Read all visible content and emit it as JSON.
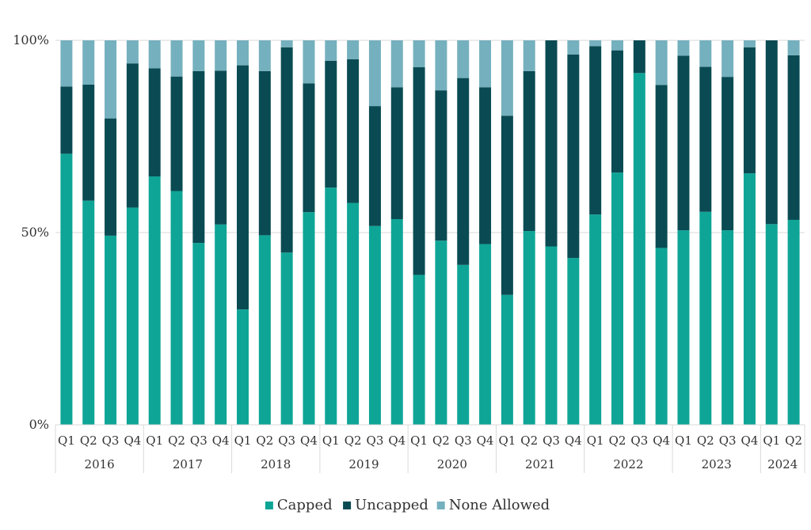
{
  "chart_data": {
    "type": "bar",
    "stacked": true,
    "percent_stacked": true,
    "title": "",
    "xlabel": "",
    "ylabel": "",
    "ylim": [
      0,
      100
    ],
    "yticks": [
      "0%",
      "50%",
      "100%"
    ],
    "grid": "horizontal",
    "legend": "bottom",
    "categories": [
      "Q1",
      "Q2",
      "Q3",
      "Q4",
      "Q1",
      "Q2",
      "Q3",
      "Q4",
      "Q1",
      "Q2",
      "Q3",
      "Q4",
      "Q1",
      "Q2",
      "Q3",
      "Q4",
      "Q1",
      "Q2",
      "Q3",
      "Q4",
      "Q1",
      "Q2",
      "Q3",
      "Q4",
      "Q1",
      "Q2",
      "Q3",
      "Q4",
      "Q1",
      "Q2",
      "Q3",
      "Q4",
      "Q1",
      "Q2"
    ],
    "groups": [
      {
        "label": "2016",
        "count": 4
      },
      {
        "label": "2017",
        "count": 4
      },
      {
        "label": "2018",
        "count": 4
      },
      {
        "label": "2019",
        "count": 4
      },
      {
        "label": "2020",
        "count": 4
      },
      {
        "label": "2021",
        "count": 4
      },
      {
        "label": "2022",
        "count": 4
      },
      {
        "label": "2023",
        "count": 4
      },
      {
        "label": "2024",
        "count": 2
      }
    ],
    "series": [
      {
        "name": "Capped",
        "color": "#0ea597",
        "values": [
          70.5,
          58.3,
          49.2,
          56.5,
          64.6,
          60.8,
          47.3,
          52.1,
          30.0,
          49.3,
          44.8,
          55.3,
          61.7,
          57.7,
          51.7,
          53.5,
          39.0,
          47.9,
          41.6,
          47.0,
          33.8,
          50.4,
          46.4,
          43.4,
          54.7,
          65.6,
          91.5,
          46.0,
          50.6,
          55.4,
          50.6,
          65.4,
          52.2,
          53.3
        ]
      },
      {
        "name": "Uncapped",
        "color": "#0a4b53",
        "values": [
          17.5,
          30.2,
          30.5,
          37.5,
          28.1,
          29.8,
          44.7,
          40.0,
          63.5,
          42.7,
          53.4,
          33.5,
          33.0,
          37.4,
          31.2,
          34.3,
          54.0,
          39.1,
          48.6,
          40.8,
          46.6,
          41.6,
          53.6,
          52.9,
          43.8,
          31.8,
          8.5,
          42.4,
          45.4,
          37.7,
          39.9,
          32.8,
          47.8,
          42.8
        ]
      },
      {
        "name": "None Allowed",
        "color": "#75b0be",
        "values": [
          12.0,
          11.5,
          20.3,
          6.0,
          7.3,
          9.4,
          8.0,
          7.9,
          6.5,
          8.0,
          1.8,
          11.2,
          5.3,
          4.9,
          17.1,
          12.2,
          7.0,
          13.0,
          9.8,
          12.2,
          19.6,
          8.0,
          0.0,
          3.7,
          1.5,
          2.6,
          0.0,
          11.6,
          4.0,
          6.9,
          9.5,
          1.8,
          0.0,
          3.9
        ]
      }
    ]
  }
}
